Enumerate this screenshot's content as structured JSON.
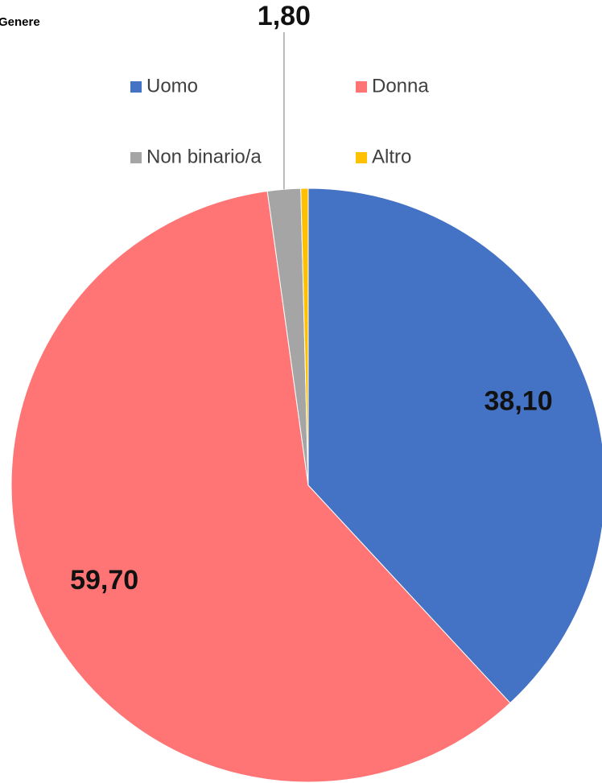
{
  "chart_data": {
    "type": "pie",
    "title": "Genere",
    "categories": [
      "Uomo",
      "Donna",
      "Non binario/a",
      "Altro"
    ],
    "values": [
      38.1,
      59.7,
      1.8,
      0.4
    ],
    "value_labels": [
      "38,10",
      "59,70",
      "1,80",
      null
    ],
    "colors": [
      "#4472c4",
      "#ff7575",
      "#a5a5a5",
      "#ffc000"
    ],
    "legend": "top"
  }
}
